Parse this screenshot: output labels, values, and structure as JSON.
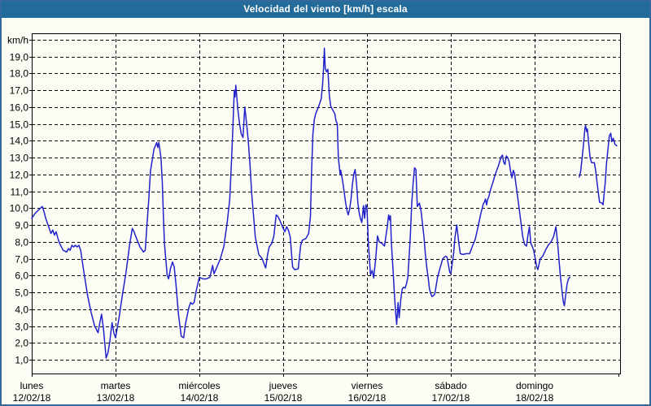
{
  "title": "Velocidad del viento [km/h] escala",
  "colors": {
    "titlebar_bg": "#236B99",
    "title_text": "#FFFFFF",
    "frame": "#35699B",
    "background": "#FBFDF4",
    "line": "#2222CC",
    "grid": "#000000"
  },
  "chart_data": {
    "type": "line",
    "title": "Velocidad del viento [km/h] escala",
    "grid": "dashed",
    "legend": "none",
    "y_axis": {
      "unit": "km/h",
      "min": 0,
      "max": 20,
      "tick_step": 1,
      "tick_labels": [
        "km/h",
        "19,0",
        "18,0",
        "17,0",
        "16,0",
        "15,0",
        "14,0",
        "13,0",
        "12,0",
        "11,0",
        "10,0",
        "9,0",
        "8,0",
        "7,0",
        "6,0",
        "5,0",
        "4,0",
        "3,0",
        "2,0",
        "1,0"
      ],
      "tick_values": [
        20,
        19,
        18,
        17,
        16,
        15,
        14,
        13,
        12,
        11,
        10,
        9,
        8,
        7,
        6,
        5,
        4,
        3,
        2,
        1
      ]
    },
    "x_axis": {
      "hours_per_day": 24,
      "days": [
        {
          "name": "lunes",
          "date": "12/02/18"
        },
        {
          "name": "martes",
          "date": "13/02/18"
        },
        {
          "name": "miércoles",
          "date": "14/02/18"
        },
        {
          "name": "jueves",
          "date": "15/02/18"
        },
        {
          "name": "viernes",
          "date": "16/02/18"
        },
        {
          "name": "sábado",
          "date": "17/02/18"
        },
        {
          "name": "domingo",
          "date": "18/02/18"
        }
      ]
    },
    "series_name": "Velocidad del viento",
    "segments": [
      [
        [
          0,
          9.4
        ],
        [
          1,
          9.7
        ],
        [
          2,
          9.9
        ],
        [
          3,
          10.1
        ],
        [
          3.5,
          9.8
        ],
        [
          4,
          9.4
        ],
        [
          5,
          8.8
        ],
        [
          5.5,
          8.5
        ],
        [
          6,
          8.7
        ],
        [
          6.5,
          8.4
        ],
        [
          7,
          8.6
        ],
        [
          7.5,
          8.2
        ],
        [
          8,
          7.9
        ],
        [
          9,
          7.5
        ],
        [
          10,
          7.4
        ],
        [
          10.5,
          7.6
        ],
        [
          11,
          7.5
        ],
        [
          11.5,
          7.8
        ],
        [
          12,
          7.7
        ],
        [
          12.5,
          7.8
        ],
        [
          13,
          7.7
        ],
        [
          13.5,
          7.8
        ],
        [
          14,
          7.5
        ],
        [
          15,
          6.1
        ],
        [
          16,
          4.8
        ],
        [
          17,
          3.8
        ],
        [
          18,
          3.0
        ],
        [
          19,
          2.6
        ],
        [
          19.5,
          3.2
        ],
        [
          20,
          3.7
        ],
        [
          20.5,
          2.9
        ],
        [
          21,
          1.8
        ],
        [
          21.3,
          1.1
        ],
        [
          21.8,
          1.4
        ],
        [
          22.3,
          2.0
        ],
        [
          23,
          3.2
        ],
        [
          23.5,
          2.6
        ],
        [
          24,
          2.3
        ],
        [
          25,
          3.5
        ],
        [
          26,
          4.9
        ],
        [
          27,
          6.2
        ],
        [
          28,
          7.8
        ],
        [
          28.8,
          8.8
        ],
        [
          29.3,
          8.6
        ],
        [
          30,
          8.2
        ],
        [
          31,
          7.7
        ],
        [
          32,
          7.4
        ],
        [
          32.5,
          7.5
        ],
        [
          33,
          9.0
        ],
        [
          33.5,
          10.5
        ],
        [
          34,
          12.2
        ],
        [
          35,
          13.5
        ],
        [
          35.8,
          13.9
        ],
        [
          36.1,
          13.6
        ],
        [
          36.4,
          13.9
        ],
        [
          37,
          13.0
        ],
        [
          37.4,
          11.5
        ],
        [
          37.7,
          9.5
        ],
        [
          38,
          7.9
        ],
        [
          38.8,
          6.0
        ],
        [
          39.2,
          5.8
        ],
        [
          39.7,
          6.4
        ],
        [
          40.3,
          6.8
        ],
        [
          40.8,
          6.5
        ],
        [
          41.3,
          5.5
        ],
        [
          42,
          3.7
        ],
        [
          42.8,
          2.4
        ],
        [
          43.5,
          2.3
        ],
        [
          44,
          3.1
        ],
        [
          45,
          4.1
        ],
        [
          45.5,
          4.4
        ],
        [
          46,
          4.3
        ],
        [
          46.5,
          4.4
        ],
        [
          47,
          5.0
        ],
        [
          48,
          5.9
        ],
        [
          49,
          5.8
        ],
        [
          50,
          5.8
        ],
        [
          51,
          5.9
        ],
        [
          51.8,
          6.6
        ],
        [
          52.2,
          6.1
        ],
        [
          53,
          6.5
        ],
        [
          54,
          7.0
        ],
        [
          55,
          7.7
        ],
        [
          56,
          9.2
        ],
        [
          56.7,
          10.5
        ],
        [
          57.2,
          12.8
        ],
        [
          57.6,
          14.8
        ],
        [
          58,
          17.0
        ],
        [
          58.2,
          16.6
        ],
        [
          58.45,
          17.3
        ],
        [
          59,
          15.9
        ],
        [
          59.5,
          15.0
        ],
        [
          60,
          14.4
        ],
        [
          60.5,
          14.2
        ],
        [
          61,
          16.0
        ],
        [
          61.5,
          15.1
        ],
        [
          62,
          14.0
        ],
        [
          62.5,
          12.6
        ],
        [
          63,
          10.8
        ],
        [
          63.5,
          9.6
        ],
        [
          64,
          8.3
        ],
        [
          65,
          7.25
        ],
        [
          66,
          7.0
        ],
        [
          66.5,
          6.7
        ],
        [
          67,
          6.45
        ],
        [
          67.5,
          7.2
        ],
        [
          68,
          7.7
        ],
        [
          68.7,
          7.9
        ],
        [
          69.3,
          8.3
        ],
        [
          70,
          9.6
        ],
        [
          70.5,
          9.5
        ],
        [
          71,
          9.3
        ],
        [
          72,
          8.8
        ],
        [
          72.5,
          8.6
        ],
        [
          73,
          8.9
        ],
        [
          73.5,
          8.7
        ],
        [
          74,
          8.3
        ],
        [
          74.7,
          6.5
        ],
        [
          75.3,
          6.35
        ],
        [
          76.3,
          6.4
        ],
        [
          77,
          7.8
        ],
        [
          77.5,
          8.1
        ],
        [
          78.5,
          8.2
        ],
        [
          79.3,
          8.5
        ],
        [
          79.8,
          9.5
        ],
        [
          80.1,
          12.0
        ],
        [
          80.5,
          14.4
        ],
        [
          80.9,
          15.25
        ],
        [
          81.3,
          15.6
        ],
        [
          82.1,
          16.0
        ],
        [
          82.9,
          16.5
        ],
        [
          83.3,
          17.4
        ],
        [
          83.55,
          18.3
        ],
        [
          83.8,
          19.5
        ],
        [
          84.05,
          18.3
        ],
        [
          84.4,
          18.1
        ],
        [
          84.8,
          18.25
        ],
        [
          85.2,
          16.7
        ],
        [
          85.6,
          16.05
        ],
        [
          86,
          15.9
        ],
        [
          86.8,
          15.6
        ],
        [
          87.1,
          15.2
        ],
        [
          87.5,
          15.0
        ],
        [
          87.8,
          13.0
        ],
        [
          88.3,
          12.0
        ],
        [
          88.5,
          12.25
        ],
        [
          89.1,
          11.5
        ],
        [
          89.5,
          10.9
        ],
        [
          89.9,
          10.3
        ],
        [
          90.3,
          9.85
        ],
        [
          90.6,
          9.6
        ],
        [
          91,
          9.9
        ],
        [
          91.4,
          10.5
        ],
        [
          91.8,
          11.4
        ],
        [
          92.2,
          12.0
        ],
        [
          92.6,
          12.3
        ],
        [
          93,
          11.5
        ],
        [
          93.4,
          10.3
        ],
        [
          93.7,
          9.8
        ],
        [
          94.1,
          9.4
        ],
        [
          94.5,
          9.15
        ],
        [
          95,
          10.15
        ],
        [
          95.3,
          9.4
        ],
        [
          95.7,
          10.2
        ],
        [
          96,
          10.0
        ],
        [
          96.4,
          7.9
        ],
        [
          97,
          6.05
        ],
        [
          97.5,
          6.3
        ],
        [
          97.9,
          5.85
        ],
        [
          98.5,
          7.0
        ],
        [
          99,
          8.35
        ],
        [
          99.5,
          8.0
        ],
        [
          100.3,
          7.9
        ],
        [
          101,
          7.75
        ],
        [
          101.8,
          8.9
        ],
        [
          102.2,
          9.6
        ],
        [
          102.45,
          9.3
        ],
        [
          102.7,
          9.55
        ],
        [
          103,
          7.9
        ],
        [
          103.4,
          6.5
        ],
        [
          103.8,
          5.05
        ],
        [
          104.2,
          3.8
        ],
        [
          104.5,
          3.1
        ],
        [
          104.9,
          4.4
        ],
        [
          105.2,
          3.5
        ],
        [
          105.7,
          4.6
        ],
        [
          106.1,
          5.2
        ],
        [
          106.5,
          5.3
        ],
        [
          106.9,
          5.25
        ],
        [
          107.3,
          5.5
        ],
        [
          107.7,
          5.9
        ],
        [
          108,
          6.9
        ],
        [
          108.4,
          8.3
        ],
        [
          108.8,
          10.2
        ],
        [
          109.2,
          11.5
        ],
        [
          109.6,
          12.4
        ],
        [
          110,
          12.3
        ],
        [
          110.4,
          10.1
        ],
        [
          111,
          10.3
        ],
        [
          111.5,
          9.8
        ],
        [
          112.3,
          8.3
        ],
        [
          112.7,
          7.3
        ],
        [
          113.1,
          6.5
        ],
        [
          113.5,
          5.9
        ],
        [
          113.9,
          5.2
        ],
        [
          114.3,
          4.9
        ],
        [
          114.6,
          4.75
        ],
        [
          115,
          4.8
        ],
        [
          115.4,
          4.9
        ],
        [
          116.2,
          5.9
        ],
        [
          117,
          6.5
        ],
        [
          117.7,
          7.0
        ],
        [
          118.5,
          7.15
        ],
        [
          118.9,
          7.1
        ],
        [
          119.7,
          6.2
        ],
        [
          120,
          6.1
        ],
        [
          120.8,
          7.3
        ],
        [
          121.2,
          8.3
        ],
        [
          121.7,
          9.0
        ],
        [
          122.3,
          7.9
        ],
        [
          122.7,
          7.3
        ],
        [
          123.5,
          7.25
        ],
        [
          124.5,
          7.3
        ],
        [
          125.4,
          7.3
        ],
        [
          126.2,
          7.75
        ],
        [
          127,
          8.15
        ],
        [
          127.8,
          8.9
        ],
        [
          128.5,
          9.6
        ],
        [
          129.3,
          10.25
        ],
        [
          129.7,
          10.4
        ],
        [
          129.9,
          10.55
        ],
        [
          130.25,
          10.2
        ],
        [
          130.5,
          10.5
        ],
        [
          130.9,
          10.7
        ],
        [
          131.3,
          11.05
        ],
        [
          132,
          11.5
        ],
        [
          132.8,
          12.05
        ],
        [
          133.6,
          12.5
        ],
        [
          134.4,
          13.05
        ],
        [
          134.8,
          13.15
        ],
        [
          135.1,
          12.75
        ],
        [
          135.5,
          12.6
        ],
        [
          135.9,
          13.1
        ],
        [
          136.3,
          13.0
        ],
        [
          136.7,
          12.75
        ],
        [
          137.1,
          12.2
        ],
        [
          137.5,
          11.8
        ],
        [
          137.9,
          12.25
        ],
        [
          138.25,
          12.05
        ],
        [
          139,
          10.9
        ],
        [
          139.8,
          9.6
        ],
        [
          140.6,
          8.3
        ],
        [
          141.1,
          7.85
        ],
        [
          141.7,
          7.75
        ],
        [
          142.1,
          8.4
        ],
        [
          142.5,
          8.9
        ],
        [
          142.9,
          7.9
        ],
        [
          143.3,
          7.75
        ],
        [
          143.7,
          7.5
        ],
        [
          144,
          7.2
        ],
        [
          144.6,
          6.5
        ],
        [
          144.9,
          6.35
        ],
        [
          145.6,
          7.0
        ],
        [
          146.3,
          7.15
        ],
        [
          147.1,
          7.5
        ],
        [
          147.9,
          7.8
        ],
        [
          148.7,
          8.0
        ],
        [
          149.4,
          8.3
        ],
        [
          150.1,
          8.9
        ],
        [
          150.6,
          7.9
        ],
        [
          151,
          6.9
        ],
        [
          151.4,
          5.9
        ],
        [
          151.8,
          5.15
        ],
        [
          152.2,
          4.45
        ],
        [
          152.5,
          4.2
        ],
        [
          152.9,
          4.85
        ],
        [
          153.3,
          5.5
        ],
        [
          153.7,
          5.8
        ],
        [
          154.1,
          5.9
        ]
      ],
      [
        [
          156.8,
          11.85
        ],
        [
          157.2,
          12.2
        ],
        [
          157.6,
          13.0
        ],
        [
          158,
          13.8
        ],
        [
          158.4,
          14.75
        ],
        [
          158.6,
          14.9
        ],
        [
          158.9,
          14.55
        ],
        [
          159.1,
          14.7
        ],
        [
          159.5,
          13.8
        ],
        [
          159.9,
          13.0
        ],
        [
          160.3,
          12.7
        ],
        [
          161.1,
          12.7
        ],
        [
          161.5,
          12.2
        ],
        [
          161.9,
          11.5
        ],
        [
          162.25,
          10.9
        ],
        [
          162.6,
          10.35
        ],
        [
          163.3,
          10.3
        ],
        [
          163.6,
          10.2
        ],
        [
          164.2,
          11.5
        ],
        [
          164.6,
          12.7
        ],
        [
          165,
          13.5
        ],
        [
          165.4,
          14.3
        ],
        [
          165.8,
          14.45
        ],
        [
          166.1,
          13.95
        ],
        [
          166.5,
          14.15
        ],
        [
          167,
          13.8
        ],
        [
          167.5,
          13.7
        ]
      ]
    ]
  }
}
